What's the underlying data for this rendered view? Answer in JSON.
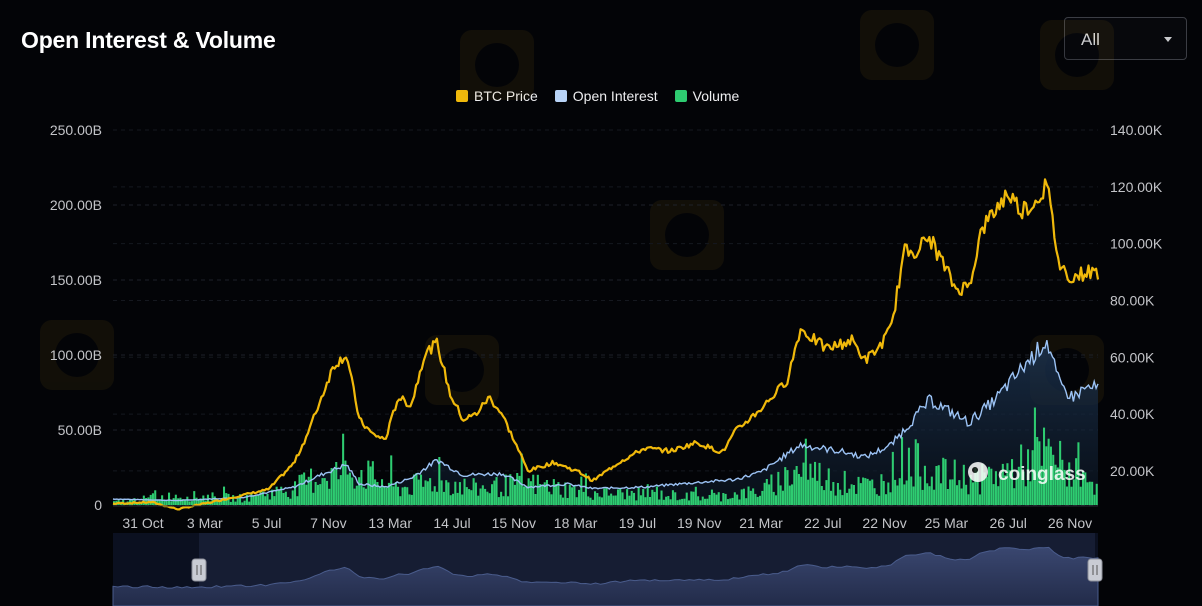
{
  "header": {
    "title": "Open Interest & Volume",
    "range_selected": "All"
  },
  "watermark": {
    "brand": "coinglass"
  },
  "colors": {
    "btc_price": "#f0b90b",
    "open_interest": "#9cc3f5",
    "volume": "#2ecc71",
    "background": "#030407"
  },
  "chart_data": {
    "type": "line",
    "title": "Open Interest & Volume",
    "legend_position": "top-center",
    "grid": true,
    "x_ticks": [
      "31 Oct",
      "3 Mar",
      "5 Jul",
      "7 Nov",
      "13 Mar",
      "14 Jul",
      "15 Nov",
      "18 Mar",
      "19 Jul",
      "19 Nov",
      "21 Mar",
      "22 Jul",
      "22 Nov",
      "25 Mar",
      "26 Jul",
      "26 Nov"
    ],
    "y_left": {
      "ticks": [
        "0",
        "50.00B",
        "100.00B",
        "150.00B",
        "200.00B",
        "250.00B"
      ],
      "range": [
        0,
        250
      ]
    },
    "y_right": {
      "ticks": [
        "20.00K",
        "40.00K",
        "60.00K",
        "80.00K",
        "100.00K",
        "120.00K",
        "140.00K"
      ],
      "range": [
        8000,
        140000
      ]
    },
    "series": [
      {
        "name": "BTC Price",
        "axis": "right",
        "points": [
          [
            "2019-10",
            8500
          ],
          [
            "2020-01",
            9000
          ],
          [
            "2020-03",
            6500
          ],
          [
            "2020-06",
            9400
          ],
          [
            "2020-08",
            11500
          ],
          [
            "2020-10",
            13500
          ],
          [
            "2020-12",
            23000
          ],
          [
            "2021-01",
            33000
          ],
          [
            "2021-02",
            45000
          ],
          [
            "2021-03",
            57000
          ],
          [
            "2021-04",
            61000
          ],
          [
            "2021-05",
            38000
          ],
          [
            "2021-06",
            33000
          ],
          [
            "2021-07",
            31000
          ],
          [
            "2021-08",
            46000
          ],
          [
            "2021-09",
            43000
          ],
          [
            "2021-10",
            61000
          ],
          [
            "2021-11",
            65000
          ],
          [
            "2021-12",
            47000
          ],
          [
            "2022-01",
            38000
          ],
          [
            "2022-02",
            40000
          ],
          [
            "2022-03",
            46000
          ],
          [
            "2022-04",
            40000
          ],
          [
            "2022-05",
            30000
          ],
          [
            "2022-06",
            20000
          ],
          [
            "2022-08",
            23000
          ],
          [
            "2022-10",
            19500
          ],
          [
            "2022-11",
            16500
          ],
          [
            "2023-01",
            23000
          ],
          [
            "2023-03",
            28000
          ],
          [
            "2023-05",
            27000
          ],
          [
            "2023-07",
            30000
          ],
          [
            "2023-09",
            26500
          ],
          [
            "2023-10",
            34000
          ],
          [
            "2023-12",
            42000
          ],
          [
            "2024-02",
            52000
          ],
          [
            "2024-03",
            70000
          ],
          [
            "2024-05",
            63000
          ],
          [
            "2024-07",
            66000
          ],
          [
            "2024-08",
            59000
          ],
          [
            "2024-09",
            63000
          ],
          [
            "2024-10",
            70000
          ],
          [
            "2024-11",
            97000
          ],
          [
            "2024-12",
            98000
          ],
          [
            "2025-01",
            102000
          ],
          [
            "2025-03",
            84000
          ],
          [
            "2025-04",
            85000
          ],
          [
            "2025-05",
            105000
          ],
          [
            "2025-07",
            118000
          ],
          [
            "2025-08",
            112000
          ],
          [
            "2025-09",
            114000
          ],
          [
            "2025-10",
            121000
          ],
          [
            "2025-11",
            92000
          ],
          [
            "2025-12",
            88000
          ],
          [
            "2026-01",
            90000
          ]
        ]
      },
      {
        "name": "Open Interest",
        "axis": "left",
        "points": [
          [
            "2019-10",
            4
          ],
          [
            "2020-03",
            3
          ],
          [
            "2020-08",
            5
          ],
          [
            "2020-12",
            12
          ],
          [
            "2021-02",
            20
          ],
          [
            "2021-04",
            27
          ],
          [
            "2021-05",
            14
          ],
          [
            "2021-07",
            12
          ],
          [
            "2021-09",
            18
          ],
          [
            "2021-11",
            30
          ],
          [
            "2022-01",
            20
          ],
          [
            "2022-04",
            21
          ],
          [
            "2022-06",
            12
          ],
          [
            "2022-09",
            14
          ],
          [
            "2022-11",
            11
          ],
          [
            "2023-03",
            12
          ],
          [
            "2023-07",
            15
          ],
          [
            "2023-10",
            17
          ],
          [
            "2023-12",
            22
          ],
          [
            "2024-03",
            40
          ],
          [
            "2024-06",
            36
          ],
          [
            "2024-08",
            32
          ],
          [
            "2024-10",
            40
          ],
          [
            "2024-12",
            60
          ],
          [
            "2025-01",
            70
          ],
          [
            "2025-04",
            55
          ],
          [
            "2025-06",
            70
          ],
          [
            "2025-08",
            90
          ],
          [
            "2025-10",
            110
          ],
          [
            "2025-11",
            80
          ],
          [
            "2025-12",
            72
          ],
          [
            "2026-01",
            78
          ]
        ]
      },
      {
        "name": "Volume",
        "axis": "left",
        "points": [
          [
            "2019-10",
            2
          ],
          [
            "2020-03",
            7
          ],
          [
            "2020-08",
            5
          ],
          [
            "2020-12",
            12
          ],
          [
            "2021-02",
            22
          ],
          [
            "2021-05",
            25
          ],
          [
            "2021-08",
            12
          ],
          [
            "2021-11",
            18
          ],
          [
            "2022-02",
            12
          ],
          [
            "2022-06",
            16
          ],
          [
            "2022-11",
            9
          ],
          [
            "2023-03",
            8
          ],
          [
            "2023-08",
            6
          ],
          [
            "2023-12",
            10
          ],
          [
            "2024-03",
            27
          ],
          [
            "2024-06",
            16
          ],
          [
            "2024-09",
            14
          ],
          [
            "2024-11",
            34
          ],
          [
            "2025-02",
            22
          ],
          [
            "2025-05",
            19
          ],
          [
            "2025-08",
            28
          ],
          [
            "2025-10",
            38
          ],
          [
            "2025-12",
            24
          ],
          [
            "2026-01",
            17
          ]
        ]
      }
    ]
  }
}
